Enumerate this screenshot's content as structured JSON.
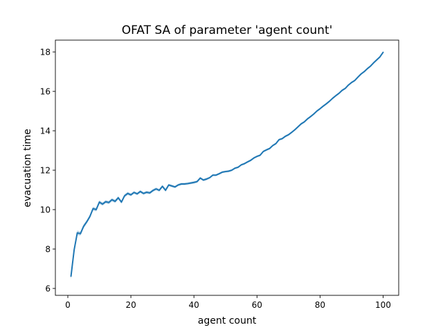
{
  "chart_data": {
    "type": "line",
    "title": "OFAT SA of parameter 'agent count'",
    "xlabel": "agent count",
    "ylabel": "evacuation time",
    "xlim": [
      -3.95,
      104.95
    ],
    "ylim": [
      5.65,
      18.6
    ],
    "xticks": [
      "0",
      "20",
      "40",
      "60",
      "80",
      "100"
    ],
    "yticks": [
      "6",
      "8",
      "10",
      "12",
      "14",
      "16",
      "18"
    ],
    "grid": false,
    "legend": "none",
    "series": [
      {
        "color": "#1f77b4",
        "band_color": "#1f77b4",
        "x": [
          1,
          2,
          3,
          4,
          5,
          6,
          7,
          8,
          9,
          10,
          11,
          12,
          13,
          14,
          15,
          16,
          17,
          18,
          19,
          20,
          21,
          22,
          23,
          24,
          25,
          26,
          27,
          28,
          29,
          30,
          31,
          32,
          33,
          34,
          35,
          36,
          37,
          38,
          39,
          40,
          41,
          42,
          43,
          44,
          45,
          46,
          47,
          48,
          49,
          50,
          51,
          52,
          53,
          54,
          55,
          56,
          57,
          58,
          59,
          60,
          61,
          62,
          63,
          64,
          65,
          66,
          67,
          68,
          69,
          70,
          71,
          72,
          73,
          74,
          75,
          76,
          77,
          78,
          79,
          80,
          81,
          82,
          83,
          84,
          85,
          86,
          87,
          88,
          89,
          90,
          91,
          92,
          93,
          94,
          95,
          96,
          97,
          98,
          99,
          100
        ],
        "y": [
          6.62,
          7.95,
          8.82,
          8.78,
          9.15,
          9.38,
          9.65,
          10.05,
          10.0,
          10.38,
          10.28,
          10.4,
          10.36,
          10.5,
          10.42,
          10.6,
          10.38,
          10.7,
          10.82,
          10.75,
          10.87,
          10.8,
          10.92,
          10.82,
          10.88,
          10.85,
          10.97,
          11.05,
          10.98,
          11.18,
          10.98,
          11.25,
          11.2,
          11.15,
          11.25,
          11.3,
          11.3,
          11.32,
          11.35,
          11.38,
          11.42,
          11.6,
          11.5,
          11.55,
          11.62,
          11.75,
          11.75,
          11.82,
          11.9,
          11.93,
          11.95,
          12.0,
          12.1,
          12.15,
          12.27,
          12.33,
          12.42,
          12.5,
          12.62,
          12.7,
          12.76,
          12.95,
          13.03,
          13.1,
          13.25,
          13.35,
          13.55,
          13.6,
          13.72,
          13.8,
          13.92,
          14.05,
          14.2,
          14.35,
          14.45,
          14.6,
          14.72,
          14.85,
          15.0,
          15.12,
          15.25,
          15.37,
          15.5,
          15.65,
          15.78,
          15.9,
          16.05,
          16.15,
          16.32,
          16.45,
          16.55,
          16.72,
          16.88,
          17.0,
          17.15,
          17.28,
          17.45,
          17.6,
          17.75,
          17.98
        ],
        "ci": [
          0.18,
          0.12,
          0.12,
          0.1,
          0.1,
          0.09,
          0.09,
          0.09,
          0.09,
          0.09,
          0.08,
          0.08,
          0.08,
          0.08,
          0.08,
          0.08,
          0.08,
          0.08,
          0.08,
          0.07,
          0.07,
          0.07,
          0.07,
          0.07,
          0.07,
          0.07,
          0.07,
          0.07,
          0.07,
          0.07,
          0.07,
          0.06,
          0.06,
          0.06,
          0.06,
          0.06,
          0.06,
          0.06,
          0.06,
          0.06,
          0.06,
          0.06,
          0.06,
          0.06,
          0.05,
          0.05,
          0.05,
          0.05,
          0.05,
          0.05,
          0.05,
          0.05,
          0.05,
          0.05,
          0.05,
          0.05,
          0.05,
          0.05,
          0.05,
          0.05,
          0.05,
          0.05,
          0.05,
          0.05,
          0.05,
          0.05,
          0.05,
          0.05,
          0.05,
          0.05,
          0.05,
          0.05,
          0.05,
          0.05,
          0.05,
          0.05,
          0.05,
          0.05,
          0.05,
          0.05,
          0.05,
          0.05,
          0.05,
          0.05,
          0.05,
          0.05,
          0.05,
          0.05,
          0.05,
          0.05,
          0.05,
          0.05,
          0.05,
          0.05,
          0.05,
          0.05,
          0.05,
          0.05,
          0.05,
          0.05
        ]
      }
    ]
  }
}
